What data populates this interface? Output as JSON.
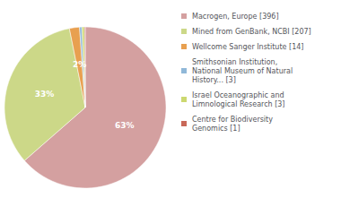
{
  "chart_data": {
    "type": "pie",
    "categories": [
      "Macrogen, Europe [396]",
      "Mined from GenBank, NCBI [207]",
      "Wellcome Sanger Institute [14]",
      "Smithsonian Institution,\nNational Museum of Natural\nHistory... [3]",
      "Israel Oceanographic and\nLimnological Research [3]",
      "Centre for Biodiversity\nGenomics [1]"
    ],
    "values": [
      63,
      33,
      2,
      0.48,
      0.48,
      0.16
    ],
    "value_labels": [
      "63%",
      "33%",
      "2%",
      null,
      null,
      null
    ],
    "data_labels": true,
    "colors": [
      "#d4a0a0",
      "#ccd888",
      "#e8a050",
      "#90b8d8",
      "#ccd870",
      "#c86858"
    ],
    "legend": "right"
  }
}
